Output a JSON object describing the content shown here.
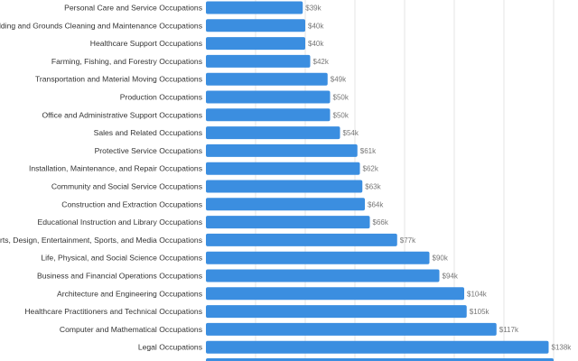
{
  "chart_data": {
    "type": "bar",
    "orientation": "horizontal",
    "categories": [
      "Personal Care and Service Occupations",
      "Building and Grounds Cleaning and Maintenance Occupations",
      "Healthcare Support Occupations",
      "Farming, Fishing, and Forestry Occupations",
      "Transportation and Material Moving Occupations",
      "Production Occupations",
      "Office and Administrative Support Occupations",
      "Sales and Related Occupations",
      "Protective Service Occupations",
      "Installation, Maintenance, and Repair Occupations",
      "Community and Social Service Occupations",
      "Construction and Extraction Occupations",
      "Educational Instruction and Library Occupations",
      "Arts, Design, Entertainment, Sports, and Media Occupations",
      "Life, Physical, and Social Science Occupations",
      "Business and Financial Operations Occupations",
      "Architecture and Engineering Occupations",
      "Healthcare Practitioners and Technical Occupations",
      "Computer and Mathematical Occupations",
      "Legal Occupations"
    ],
    "values": [
      39,
      40,
      40,
      42,
      49,
      50,
      50,
      54,
      61,
      62,
      63,
      64,
      66,
      77,
      90,
      94,
      104,
      105,
      117,
      138
    ],
    "value_labels": [
      "$39k",
      "$40k",
      "$40k",
      "$42k",
      "$49k",
      "$50k",
      "$50k",
      "$54k",
      "$61k",
      "$62k",
      "$63k",
      "$64k",
      "$66k",
      "$77k",
      "$90k",
      "$94k",
      "$104k",
      "$105k",
      "$117k",
      "$138k"
    ],
    "xlim": [
      0,
      140
    ],
    "grid": true,
    "bar_color": "#3b8ee0",
    "title": "",
    "xlabel": "",
    "ylabel": ""
  }
}
